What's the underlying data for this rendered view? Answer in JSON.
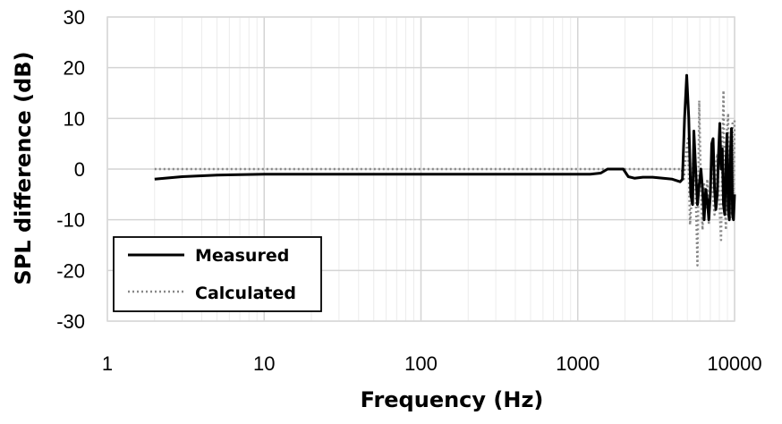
{
  "chart_data": {
    "type": "line",
    "xlabel": "Frequency (Hz)",
    "ylabel": "SPL difference (dB)",
    "xscale": "log",
    "xlim": [
      1,
      10000
    ],
    "ylim": [
      -30,
      30
    ],
    "x_ticks": [
      "1",
      "10",
      "100",
      "1000",
      "10000"
    ],
    "y_ticks": [
      "30",
      "20",
      "10",
      "0",
      "-10",
      "-20",
      "-30"
    ],
    "grid": "on (major and minor)",
    "legend": {
      "placement": "bottom-left",
      "entries": [
        "Measured",
        "Calculated"
      ]
    },
    "series": [
      {
        "name": "Measured",
        "style": "solid",
        "color": "#000000",
        "points": [
          [
            2,
            -2
          ],
          [
            3,
            -1.5
          ],
          [
            5,
            -1.2
          ],
          [
            10,
            -1
          ],
          [
            100,
            -1
          ],
          [
            1000,
            -1
          ],
          [
            1200,
            -1
          ],
          [
            1400,
            -0.8
          ],
          [
            1550,
            0
          ],
          [
            1800,
            0
          ],
          [
            1950,
            0
          ],
          [
            2100,
            -1.5
          ],
          [
            2300,
            -1.8
          ],
          [
            2600,
            -1.6
          ],
          [
            3000,
            -1.6
          ],
          [
            3500,
            -1.8
          ],
          [
            4000,
            -2
          ],
          [
            4500,
            -2.5
          ],
          [
            4650,
            -2
          ],
          [
            4800,
            10
          ],
          [
            4950,
            18.5
          ],
          [
            5100,
            10
          ],
          [
            5250,
            -5
          ],
          [
            5400,
            -7
          ],
          [
            5500,
            7.5
          ],
          [
            5650,
            0
          ],
          [
            5800,
            -7
          ],
          [
            5950,
            -3
          ],
          [
            6100,
            0
          ],
          [
            6250,
            -4
          ],
          [
            6400,
            -10
          ],
          [
            6550,
            -4
          ],
          [
            6700,
            -6
          ],
          [
            6850,
            -10
          ],
          [
            7000,
            -5
          ],
          [
            7150,
            5
          ],
          [
            7300,
            6
          ],
          [
            7450,
            -4
          ],
          [
            7600,
            -8
          ],
          [
            7750,
            -5
          ],
          [
            7900,
            3
          ],
          [
            8050,
            9
          ],
          [
            8200,
            0
          ],
          [
            8350,
            4
          ],
          [
            8500,
            -7
          ],
          [
            8650,
            -9
          ],
          [
            8800,
            1
          ],
          [
            8950,
            7
          ],
          [
            9100,
            -8
          ],
          [
            9250,
            -10
          ],
          [
            9400,
            3
          ],
          [
            9550,
            8
          ],
          [
            9700,
            -9
          ],
          [
            9850,
            -10
          ],
          [
            10000,
            -5
          ]
        ]
      },
      {
        "name": "Calculated",
        "style": "dotted",
        "color": "#888888",
        "points": [
          [
            2,
            0
          ],
          [
            10,
            0
          ],
          [
            100,
            0
          ],
          [
            1000,
            0
          ],
          [
            4000,
            0
          ],
          [
            4600,
            0
          ],
          [
            4750,
            -2
          ],
          [
            4900,
            3
          ],
          [
            5050,
            6
          ],
          [
            5200,
            -11
          ],
          [
            5350,
            -5
          ],
          [
            5500,
            6
          ],
          [
            5650,
            -4
          ],
          [
            5800,
            -19
          ],
          [
            5950,
            13.5
          ],
          [
            6100,
            -4
          ],
          [
            6250,
            -12
          ],
          [
            6400,
            -3
          ],
          [
            6550,
            -8
          ],
          [
            6700,
            -2
          ],
          [
            6850,
            -11
          ],
          [
            7000,
            -3
          ],
          [
            7150,
            3
          ],
          [
            7300,
            -6
          ],
          [
            7450,
            -9
          ],
          [
            7600,
            1
          ],
          [
            7750,
            3
          ],
          [
            7900,
            -3
          ],
          [
            8050,
            -9
          ],
          [
            8200,
            -14
          ],
          [
            8350,
            3
          ],
          [
            8500,
            15.5
          ],
          [
            8650,
            -6
          ],
          [
            8800,
            -12
          ],
          [
            8950,
            8
          ],
          [
            9100,
            11
          ],
          [
            9250,
            -7
          ],
          [
            9400,
            -10
          ],
          [
            9550,
            6
          ],
          [
            9700,
            9
          ],
          [
            9850,
            -8
          ],
          [
            10000,
            10
          ]
        ]
      }
    ]
  }
}
